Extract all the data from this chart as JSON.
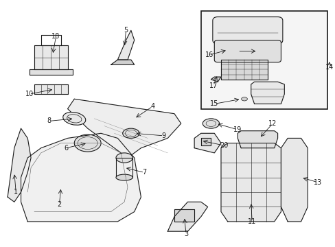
{
  "bg_color": "#ffffff",
  "line_color": "#1a1a1a",
  "fig_width": 4.89,
  "fig_height": 3.6,
  "dpi": 100,
  "labels": [
    [
      1,
      0.04,
      0.3,
      0.045,
      0.22
    ],
    [
      2,
      0.18,
      0.24,
      0.175,
      0.17
    ],
    [
      3,
      0.55,
      0.12,
      0.555,
      0.05
    ],
    [
      4,
      0.4,
      0.52,
      0.455,
      0.57
    ],
    [
      5,
      0.37,
      0.81,
      0.375,
      0.88
    ],
    [
      6,
      0.26,
      0.42,
      0.195,
      0.4
    ],
    [
      7,
      0.37,
      0.32,
      0.43,
      0.3
    ],
    [
      8,
      0.22,
      0.52,
      0.145,
      0.51
    ],
    [
      9,
      0.4,
      0.46,
      0.488,
      0.45
    ],
    [
      10,
      0.16,
      0.64,
      0.085,
      0.62
    ],
    [
      11,
      0.75,
      0.18,
      0.753,
      0.1
    ],
    [
      12,
      0.775,
      0.44,
      0.815,
      0.5
    ],
    [
      13,
      0.9,
      0.28,
      0.95,
      0.26
    ],
    [
      14,
      0.985,
      0.76,
      0.985,
      0.73
    ],
    [
      15,
      0.72,
      0.6,
      0.64,
      0.58
    ],
    [
      16,
      0.68,
      0.8,
      0.625,
      0.78
    ],
    [
      17,
      0.65,
      0.7,
      0.637,
      0.655
    ],
    [
      18,
      0.155,
      0.78,
      0.165,
      0.855
    ],
    [
      19,
      0.645,
      0.5,
      0.71,
      0.475
    ],
    [
      20,
      0.6,
      0.43,
      0.67,
      0.41
    ]
  ]
}
